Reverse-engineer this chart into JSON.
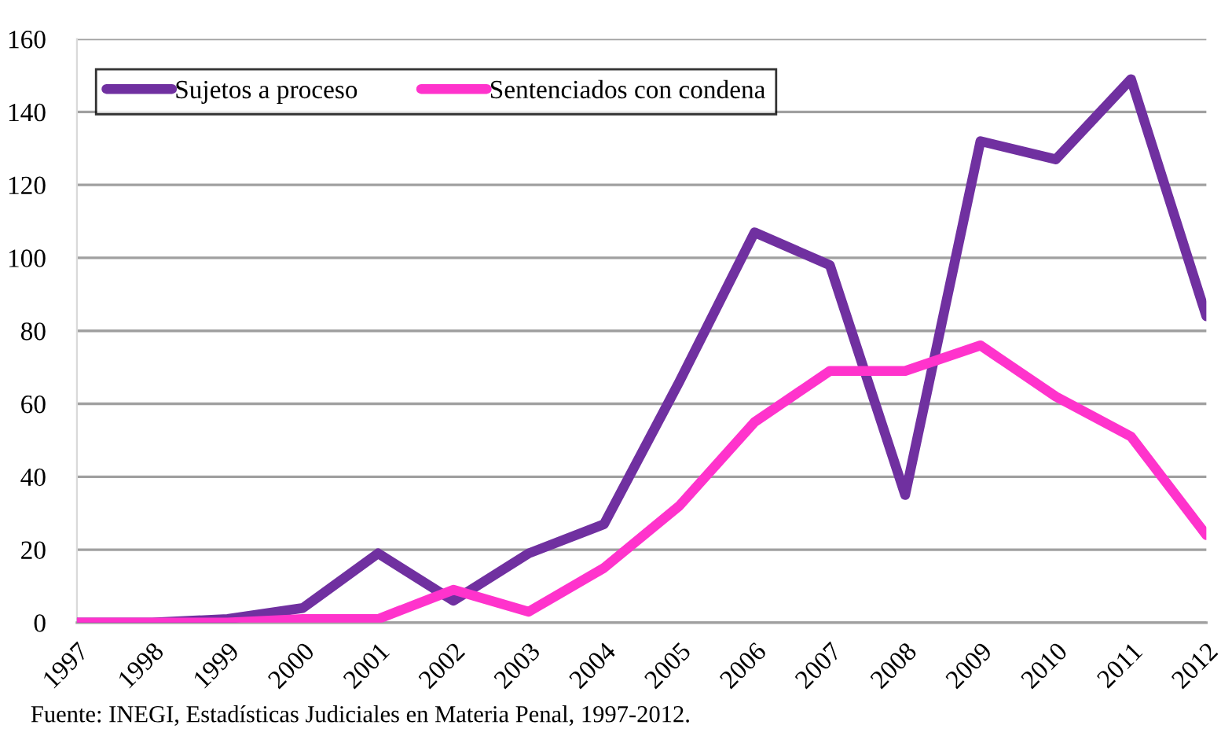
{
  "chart_data": {
    "type": "line",
    "categories": [
      "1997",
      "1998",
      "1999",
      "2000",
      "2001",
      "2002",
      "2003",
      "2004",
      "2005",
      "2006",
      "2007",
      "2008",
      "2009",
      "2010",
      "2011",
      "2012"
    ],
    "series": [
      {
        "name": "Sujetos a proceso",
        "color": "#7030a0",
        "values": [
          0,
          0,
          1,
          4,
          19,
          6,
          19,
          27,
          66,
          107,
          98,
          35,
          132,
          127,
          149,
          84
        ]
      },
      {
        "name": "Sentenciados con condena",
        "color": "#ff33cc",
        "values": [
          0,
          0,
          0,
          1,
          1,
          9,
          3,
          15,
          32,
          55,
          69,
          69,
          76,
          62,
          51,
          24
        ]
      }
    ],
    "ylim": [
      0,
      160
    ],
    "yticks": [
      0,
      20,
      40,
      60,
      80,
      100,
      120,
      140,
      160
    ],
    "grid": "y",
    "legend": "top left",
    "marker": "none",
    "line_style": "solid",
    "annotations": [
      "Fuente: INEGI, Estadísticas Judiciales en Materia Penal, 1997-2012."
    ]
  }
}
